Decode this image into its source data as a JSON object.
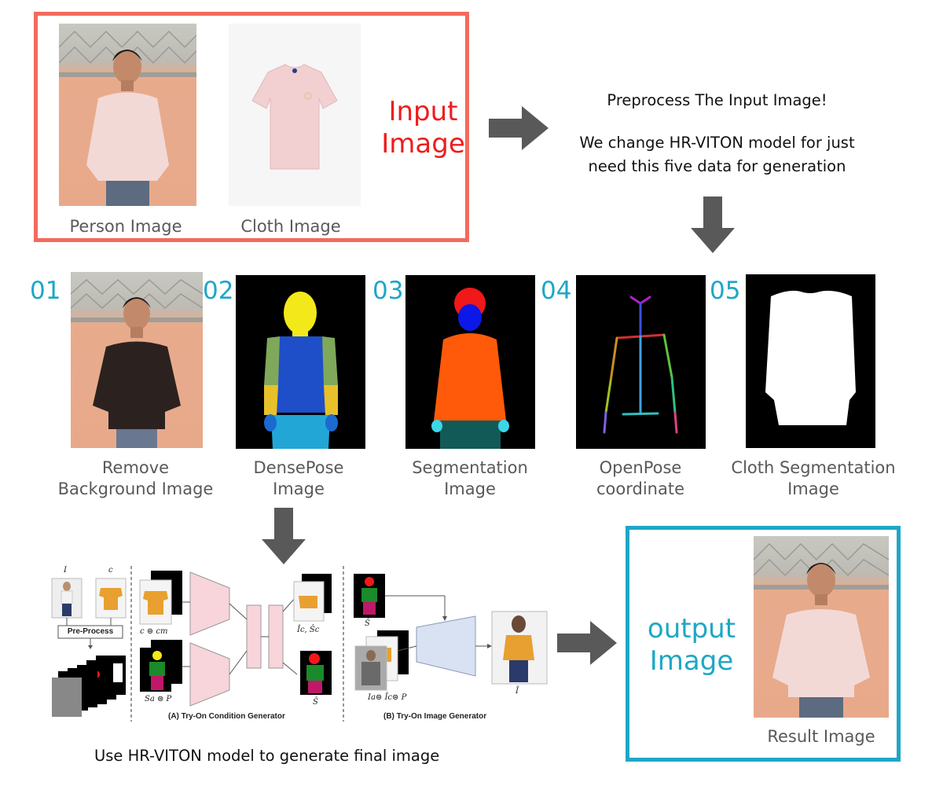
{
  "input_section": {
    "title_line1": "Input",
    "title_line2": "Image",
    "person_caption": "Person Image",
    "cloth_caption": "Cloth Image"
  },
  "preprocess": {
    "line1": "Preprocess The Input Image!",
    "line2": "We change HR-VITON model for just",
    "line3": "need this five data for generation"
  },
  "steps": [
    {
      "number": "01",
      "caption_line1": "Remove",
      "caption_line2": "Background Image"
    },
    {
      "number": "02",
      "caption_line1": "DensePose",
      "caption_line2": "Image"
    },
    {
      "number": "03",
      "caption_line1": "Segmentation",
      "caption_line2": "Image"
    },
    {
      "number": "04",
      "caption_line1": "OpenPose",
      "caption_line2": "coordinate"
    },
    {
      "number": "05",
      "caption_line1": "Cloth Segmentation",
      "caption_line2": "Image"
    }
  ],
  "hrviton": {
    "label_I": "I",
    "label_c": "c",
    "preprocess_label": "Pre-Process",
    "label_c_cm": "c ⊜ cm",
    "label_sa_p": "Sa ⊜ P",
    "label_ic_sc": "Îc, Ŝc",
    "label_s_hat_a": "Ŝ",
    "label_s_hat_b": "Ŝ",
    "label_ia": "Ia⊜ Îc⊜ P",
    "label_i_hat": "Î",
    "section_a": "(A) Try-On Condition Generator",
    "section_b": "(B) Try-On Image Generator",
    "caption": "Use HR-VITON model to generate final image"
  },
  "output_section": {
    "title_line1": "output",
    "title_line2": "Image",
    "result_caption": "Result Image"
  },
  "colors": {
    "input_border": "#f26b5c",
    "output_border": "#1ea7c6",
    "arrow": "#595959",
    "accent_red": "#ee1c1c",
    "accent_blue": "#1ea7c6"
  }
}
